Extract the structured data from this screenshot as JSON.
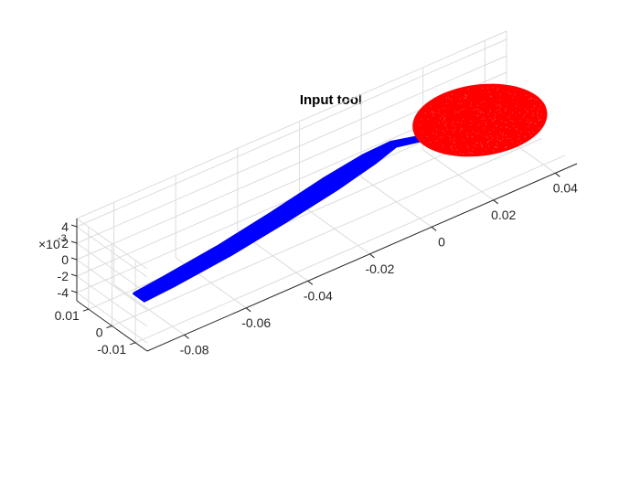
{
  "chart_data": {
    "type": "scatter3d",
    "title": "Input tool",
    "grid": true,
    "x_axis": {
      "ticks": [
        -0.08,
        -0.06,
        -0.04,
        -0.02,
        0,
        0.02,
        0.04
      ],
      "labels": [
        "-0.08",
        "-0.06",
        "-0.04",
        "-0.02",
        "0",
        "0.02",
        "0.04"
      ],
      "range": [
        -0.092,
        0.047
      ]
    },
    "y_axis": {
      "ticks": [
        -0.01,
        0,
        0.01
      ],
      "labels": [
        "-0.01",
        "0",
        "0.01"
      ],
      "range": [
        -0.015,
        0.015
      ]
    },
    "z_axis": {
      "ticks": [
        -4,
        -2,
        0,
        2,
        4
      ],
      "labels": [
        "-4",
        "-2",
        "0",
        "2",
        "4"
      ],
      "range": [
        -5,
        5
      ],
      "multiplier": "×10",
      "multiplier_exp": "-3"
    },
    "series": [
      {
        "part": "handle",
        "color": "#0000ff",
        "centerline": [
          [
            -0.09,
            -0.009
          ],
          [
            -0.08,
            -0.008
          ],
          [
            -0.06,
            -0.0055
          ],
          [
            -0.04,
            -0.002
          ],
          [
            -0.02,
            0.002
          ],
          [
            -0.005,
            0.005
          ],
          [
            0.004,
            0.0066
          ],
          [
            0.011,
            0.0044
          ]
        ],
        "half_width": [
          0.0022,
          0.0024,
          0.0026,
          0.0028,
          0.003,
          0.0024,
          0.0012,
          0.001
        ]
      },
      {
        "part": "bowl",
        "color": "#ff0000",
        "center": [
          0.027,
          0.0
        ],
        "semi_axes": [
          0.018,
          0.0155
        ]
      }
    ]
  }
}
